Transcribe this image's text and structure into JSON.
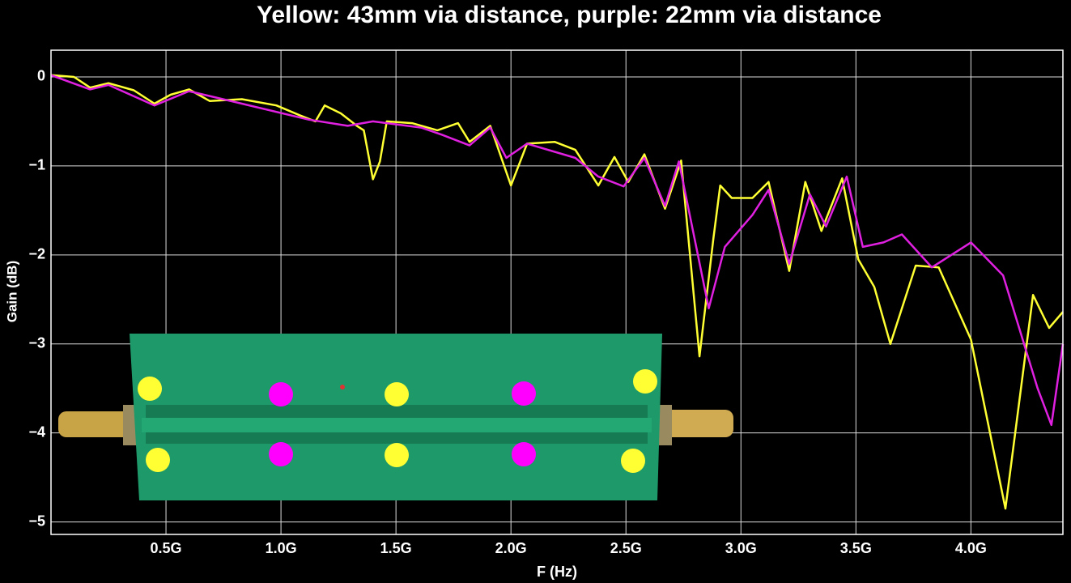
{
  "chart_data": {
    "type": "line",
    "title": "Yellow: 43mm via distance, purple: 22mm via distance",
    "x_label": "F (Hz)",
    "y_label": "Gain (dB)",
    "xlim": [
      0,
      4400000000.0
    ],
    "ylim": [
      -5.14,
      0.3
    ],
    "xticks": [
      {
        "value": 500000000.0,
        "label": "0.5G"
      },
      {
        "value": 1000000000.0,
        "label": "1.0G"
      },
      {
        "value": 1500000000.0,
        "label": "1.5G"
      },
      {
        "value": 2000000000.0,
        "label": "2.0G"
      },
      {
        "value": 2500000000.0,
        "label": "2.5G"
      },
      {
        "value": 3000000000.0,
        "label": "3.0G"
      },
      {
        "value": 3500000000.0,
        "label": "3.5G"
      },
      {
        "value": 4000000000.0,
        "label": "4.0G"
      }
    ],
    "yticks": [
      0,
      {
        "value": -1,
        "label": "−1"
      },
      {
        "value": -2,
        "label": "−2"
      },
      {
        "value": -3,
        "label": "−3"
      },
      {
        "value": -4,
        "label": "−4"
      },
      {
        "value": -5,
        "label": "−5"
      }
    ],
    "grid": true,
    "series": [
      {
        "color": "#ffff33",
        "x": [
          0,
          100000000.0,
          170000000.0,
          250000000.0,
          360000000.0,
          450000000.0,
          520000000.0,
          600000000.0,
          690000000.0,
          830000000.0,
          980000000.0,
          1080000000.0,
          1150000000.0,
          1190000000.0,
          1260000000.0,
          1330000000.0,
          1360000000.0,
          1400000000.0,
          1430000000.0,
          1460000000.0,
          1570000000.0,
          1680000000.0,
          1770000000.0,
          1820000000.0,
          1910000000.0,
          2000000000.0,
          2070000000.0,
          2190000000.0,
          2280000000.0,
          2380000000.0,
          2450000000.0,
          2510000000.0,
          2580000000.0,
          2670000000.0,
          2740000000.0,
          2820000000.0,
          2880000000.0,
          2910000000.0,
          2960000000.0,
          3050000000.0,
          3120000000.0,
          3210000000.0,
          3280000000.0,
          3350000000.0,
          3440000000.0,
          3510000000.0,
          3580000000.0,
          3650000000.0,
          3760000000.0,
          3860000000.0,
          4000000000.0,
          4150000000.0,
          4270000000.0,
          4340000000.0,
          4400000000.0
        ],
        "values": [
          0.02,
          0,
          -0.12,
          -0.07,
          -0.15,
          -0.3,
          -0.2,
          -0.14,
          -0.27,
          -0.25,
          -0.32,
          -0.43,
          -0.5,
          -0.32,
          -0.41,
          -0.55,
          -0.6,
          -1.15,
          -0.95,
          -0.5,
          -0.52,
          -0.6,
          -0.52,
          -0.73,
          -0.55,
          -1.22,
          -0.75,
          -0.73,
          -0.82,
          -1.22,
          -0.9,
          -1.18,
          -0.87,
          -1.48,
          -0.94,
          -3.14,
          -1.82,
          -1.22,
          -1.36,
          -1.36,
          -1.18,
          -2.18,
          -1.18,
          -1.73,
          -1.14,
          -2.05,
          -2.36,
          -3.0,
          -2.12,
          -2.14,
          -2.95,
          -4.85,
          -2.45,
          -2.82,
          -2.64
        ]
      },
      {
        "color": "#e020e0",
        "x": [
          0,
          170000000.0,
          250000000.0,
          450000000.0,
          600000000.0,
          830000000.0,
          1120000000.0,
          1290000000.0,
          1400000000.0,
          1610000000.0,
          1700000000.0,
          1820000000.0,
          1910000000.0,
          1980000000.0,
          2070000000.0,
          2280000000.0,
          2380000000.0,
          2490000000.0,
          2580000000.0,
          2670000000.0,
          2730000000.0,
          2860000000.0,
          2930000000.0,
          3050000000.0,
          3120000000.0,
          3210000000.0,
          3300000000.0,
          3370000000.0,
          3460000000.0,
          3530000000.0,
          3620000000.0,
          3700000000.0,
          3830000000.0,
          4000000000.0,
          4140000000.0,
          4290000000.0,
          4350000000.0,
          4400000000.0
        ],
        "values": [
          0.02,
          -0.14,
          -0.09,
          -0.32,
          -0.16,
          -0.3,
          -0.48,
          -0.55,
          -0.5,
          -0.57,
          -0.65,
          -0.77,
          -0.57,
          -0.91,
          -0.75,
          -0.91,
          -1.12,
          -1.23,
          -0.91,
          -1.45,
          -0.95,
          -2.6,
          -1.91,
          -1.55,
          -1.27,
          -2.1,
          -1.32,
          -1.68,
          -1.12,
          -1.91,
          -1.86,
          -1.77,
          -2.14,
          -1.86,
          -2.23,
          -3.5,
          -3.91,
          -3.0
        ]
      }
    ]
  }
}
